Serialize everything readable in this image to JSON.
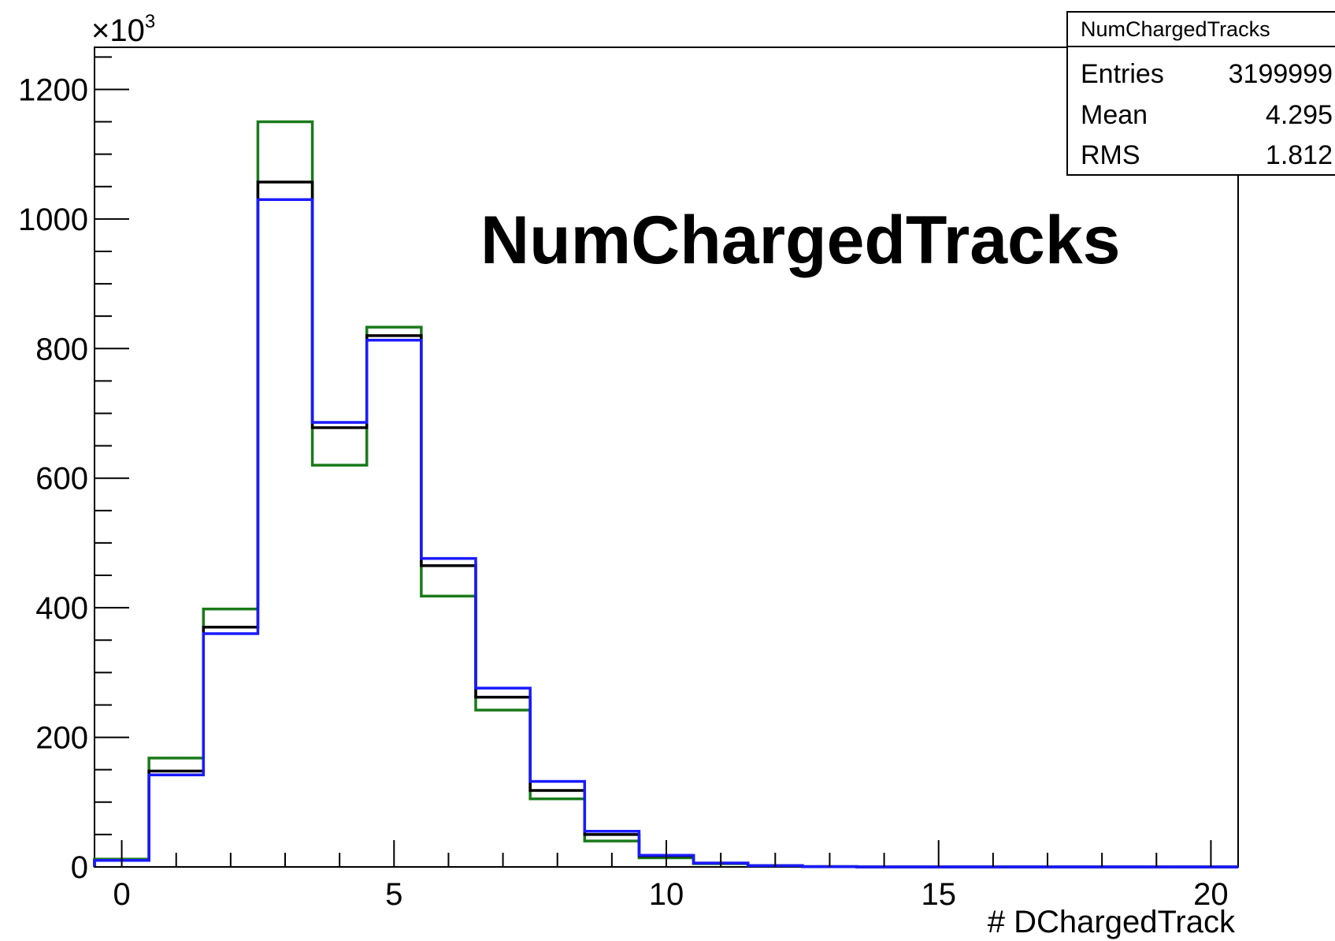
{
  "chart_data": {
    "type": "histogram",
    "title": "NumChargedTracks",
    "xlabel": "# DChargedTrack",
    "ylabel": "",
    "y_exponent_label": "×10",
    "y_exponent_power": "3",
    "xlim": [
      -0.5,
      20.5
    ],
    "ylim": [
      0,
      1265
    ],
    "x_ticks": [
      0,
      5,
      10,
      15,
      20
    ],
    "y_ticks": [
      0,
      200,
      400,
      600,
      800,
      1000,
      1200
    ],
    "bin_edges": [
      -0.5,
      0.5,
      1.5,
      2.5,
      3.5,
      4.5,
      5.5,
      6.5,
      7.5,
      8.5,
      9.5,
      10.5,
      11.5,
      12.5,
      13.5,
      14.5,
      15.5,
      16.5,
      17.5,
      18.5,
      19.5,
      20.5
    ],
    "series": [
      {
        "color": "#1a7a1a",
        "values": [
          12,
          168,
          398,
          1150,
          620,
          833,
          418,
          242,
          105,
          40,
          14,
          5,
          2,
          0.5,
          0,
          0,
          0,
          0,
          0,
          0,
          0
        ]
      },
      {
        "color": "#000000",
        "values": [
          10,
          148,
          370,
          1057,
          678,
          820,
          465,
          262,
          118,
          50,
          17,
          6,
          2,
          0.5,
          0,
          0,
          0,
          0,
          0,
          0,
          0
        ]
      },
      {
        "color": "#1a1aff",
        "values": [
          10,
          142,
          360,
          1030,
          686,
          813,
          476,
          276,
          132,
          55,
          18,
          6,
          2,
          0.5,
          0,
          0,
          0,
          0,
          0,
          0,
          0
        ]
      }
    ],
    "grid": false,
    "legend": "none"
  },
  "stats_box": {
    "title": "NumChargedTracks",
    "rows": [
      {
        "label": "Entries",
        "value": "3199999"
      },
      {
        "label": "Mean",
        "value": "4.295"
      },
      {
        "label": "RMS",
        "value": "1.812"
      }
    ]
  }
}
